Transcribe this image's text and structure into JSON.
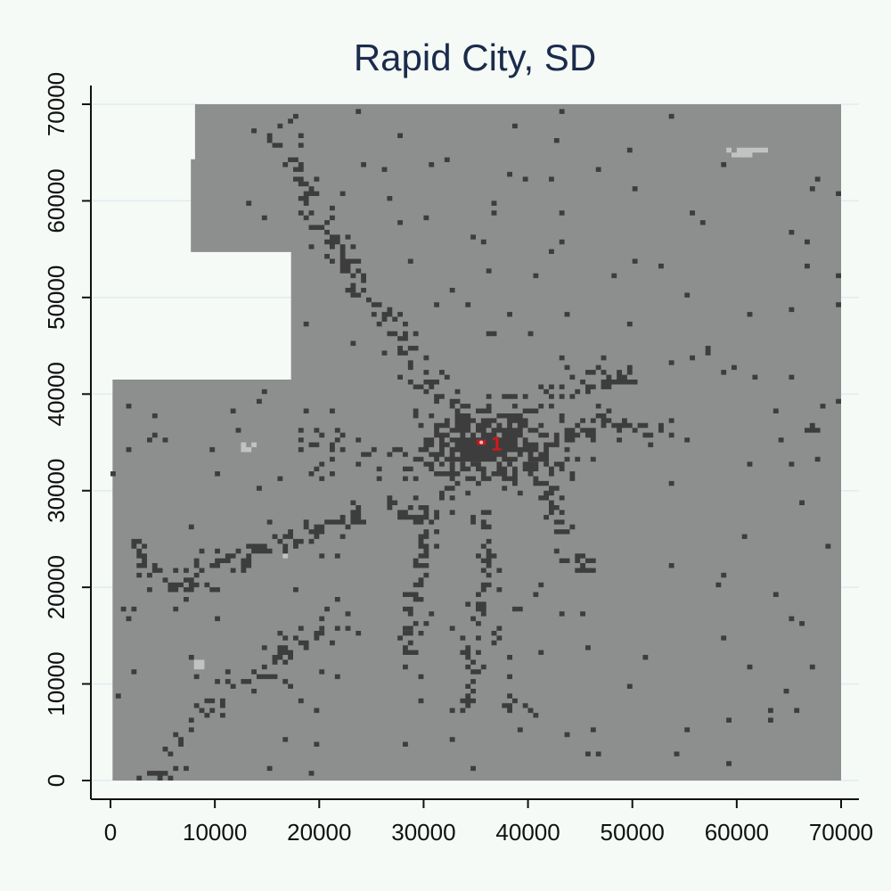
{
  "chart_data": {
    "type": "heatmap",
    "title": "Rapid City, SD",
    "xlabel": "",
    "ylabel": "",
    "xlim": [
      0,
      70000
    ],
    "ylim": [
      0,
      70000
    ],
    "x_ticks": [
      0,
      10000,
      20000,
      30000,
      40000,
      50000,
      60000,
      70000
    ],
    "y_ticks": [
      0,
      10000,
      20000,
      30000,
      40000,
      50000,
      60000,
      70000
    ],
    "x_tick_labels": [
      "0",
      "10000",
      "20000",
      "30000",
      "40000",
      "50000",
      "60000",
      "70000"
    ],
    "y_tick_labels": [
      "0",
      "10000",
      "20000",
      "30000",
      "40000",
      "50000",
      "60000",
      "70000"
    ],
    "grid": "horizontal",
    "legend": "none",
    "colors": {
      "background": "#f5faf7",
      "gridline": "#e3ebf0",
      "land": "#8d8e8e",
      "developed": "#3d3d3d",
      "light": "#c2c2c2",
      "marker": "#d61818",
      "title": "#1b2b4b"
    },
    "coverage_polygon": [
      [
        200,
        0
      ],
      [
        70000,
        0
      ],
      [
        70000,
        70000
      ],
      [
        8100,
        70000
      ],
      [
        8100,
        64300
      ],
      [
        7700,
        64300
      ],
      [
        7700,
        54700
      ],
      [
        17300,
        54700
      ],
      [
        17300,
        41500
      ],
      [
        200,
        41500
      ]
    ],
    "developed_clusters": [
      {
        "x": 36000,
        "y": 34500,
        "rx": 6500,
        "ry": 3800,
        "density": 0.85
      },
      {
        "x": 40500,
        "y": 33500,
        "rx": 3500,
        "ry": 2300,
        "density": 0.75
      },
      {
        "x": 32000,
        "y": 34000,
        "rx": 3000,
        "ry": 2600,
        "density": 0.7
      },
      {
        "x": 29500,
        "y": 27500,
        "rx": 1500,
        "ry": 1200,
        "density": 0.6
      },
      {
        "x": 27000,
        "y": 47500,
        "rx": 1800,
        "ry": 1500,
        "density": 0.35
      },
      {
        "x": 5500,
        "y": 900,
        "rx": 1800,
        "ry": 900,
        "density": 0.6
      },
      {
        "x": 67200,
        "y": 36500,
        "rx": 800,
        "ry": 600,
        "density": 0.6
      },
      {
        "x": 47500,
        "y": 42500,
        "rx": 1800,
        "ry": 1300,
        "density": 0.3
      },
      {
        "x": 17000,
        "y": 66000,
        "rx": 1200,
        "ry": 1200,
        "density": 0.25
      },
      {
        "x": 20000,
        "y": 34000,
        "rx": 2500,
        "ry": 1500,
        "density": 0.2
      },
      {
        "x": 38000,
        "y": 8000,
        "rx": 2000,
        "ry": 1000,
        "density": 0.3
      }
    ],
    "developed_corridors": [
      [
        [
          17000,
          67000
        ],
        [
          20000,
          58000
        ],
        [
          25000,
          50000
        ],
        [
          29000,
          44000
        ],
        [
          33000,
          38000
        ]
      ],
      [
        [
          36000,
          34000
        ],
        [
          42000,
          40000
        ],
        [
          46000,
          41000
        ],
        [
          50000,
          42000
        ]
      ],
      [
        [
          32000,
          30000
        ],
        [
          30000,
          24000
        ],
        [
          29000,
          18000
        ],
        [
          28000,
          12000
        ]
      ],
      [
        [
          19000,
          36000
        ],
        [
          24000,
          34000
        ],
        [
          28000,
          34000
        ]
      ],
      [
        [
          7000,
          20000
        ],
        [
          10000,
          22000
        ],
        [
          14000,
          24000
        ],
        [
          20000,
          26000
        ],
        [
          26000,
          28000
        ]
      ],
      [
        [
          5000,
          2000
        ],
        [
          8000,
          6000
        ],
        [
          12000,
          10000
        ],
        [
          18000,
          14000
        ],
        [
          22000,
          16000
        ]
      ],
      [
        [
          41000,
          31000
        ],
        [
          43000,
          27000
        ],
        [
          45000,
          22000
        ]
      ],
      [
        [
          36000,
          30000
        ],
        [
          36000,
          22000
        ],
        [
          35000,
          14000
        ],
        [
          34000,
          8000
        ]
      ],
      [
        [
          40000,
          34000
        ],
        [
          47000,
          37000
        ],
        [
          54000,
          36000
        ]
      ],
      [
        [
          2000,
          25000
        ],
        [
          4000,
          22000
        ],
        [
          7000,
          19000
        ]
      ]
    ],
    "light_patches": [
      {
        "x": 13500,
        "y": 34500,
        "rx": 1100,
        "ry": 700
      },
      {
        "x": 16500,
        "y": 23200,
        "rx": 700,
        "ry": 400
      },
      {
        "x": 8700,
        "y": 12000,
        "rx": 900,
        "ry": 300
      },
      {
        "x": 61000,
        "y": 65000,
        "rx": 2500,
        "ry": 500
      }
    ],
    "markers": [
      {
        "label": "1",
        "x": 35700,
        "y": 35000
      }
    ]
  }
}
